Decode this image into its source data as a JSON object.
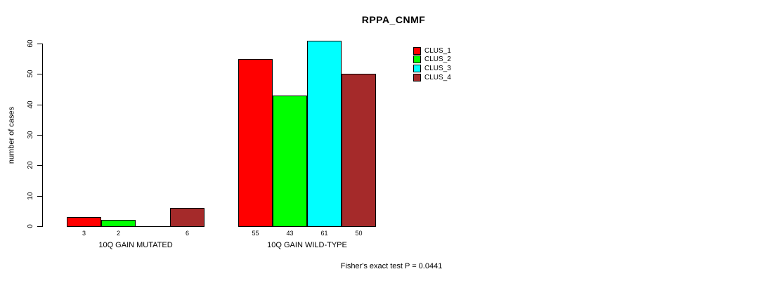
{
  "chart_data": {
    "type": "bar",
    "title": "RPPA_CNMF",
    "ylabel": "number of cases",
    "ylim": [
      0,
      60
    ],
    "yticks": [
      0,
      10,
      20,
      30,
      40,
      50,
      60
    ],
    "grid": false,
    "legend_position": "right-of-plot",
    "categories": [
      "10Q GAIN MUTATED",
      "10Q GAIN WILD-TYPE"
    ],
    "series": [
      {
        "name": "CLUS_1",
        "color": "#ff0000",
        "values": [
          3,
          55
        ]
      },
      {
        "name": "CLUS_2",
        "color": "#00ff00",
        "values": [
          2,
          43
        ]
      },
      {
        "name": "CLUS_3",
        "color": "#00ffff",
        "values": [
          0,
          61
        ]
      },
      {
        "name": "CLUS_4",
        "color": "#a52a2a",
        "values": [
          6,
          50
        ]
      }
    ],
    "bar_value_labels": [
      [
        "3",
        "2",
        "",
        "6"
      ],
      [
        "55",
        "43",
        "61",
        "50"
      ]
    ],
    "footer": "Fisher's exact test P = 0.0441"
  }
}
